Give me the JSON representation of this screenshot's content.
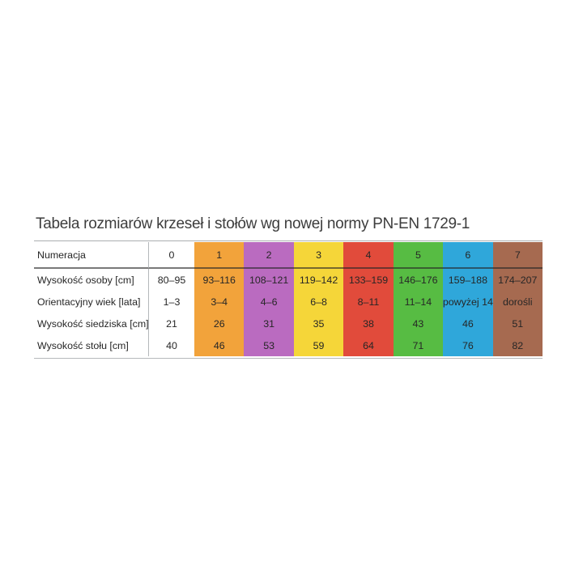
{
  "title": "Tabela rozmiarów krzeseł i stołów wg nowej normy PN-EN 1729-1",
  "chart_data": {
    "type": "table",
    "title": "Tabela rozmiarów krzeseł i stołów wg nowej normy PN-EN 1729-1",
    "header": {
      "label": "Numeracja",
      "sizes": [
        "0",
        "1",
        "2",
        "3",
        "4",
        "5",
        "6",
        "7"
      ]
    },
    "rows": [
      {
        "label": "Wysokość osoby [cm]",
        "values": [
          "80–95",
          "93–116",
          "108–121",
          "119–142",
          "133–159",
          "146–176",
          "159–188",
          "174–207"
        ]
      },
      {
        "label": "Orientacyjny wiek [lata]",
        "values": [
          "1–3",
          "3–4",
          "4–6",
          "6–8",
          "8–11",
          "11–14",
          "powyżej 14",
          "dorośli"
        ]
      },
      {
        "label": "Wysokość siedziska [cm]",
        "values": [
          "21",
          "26",
          "31",
          "35",
          "38",
          "43",
          "46",
          "51"
        ]
      },
      {
        "label": "Wysokość stołu [cm]",
        "values": [
          "40",
          "46",
          "53",
          "59",
          "64",
          "71",
          "76",
          "82"
        ]
      }
    ],
    "column_colors": [
      "#ffffff",
      "#f2a33b",
      "#ba6bc0",
      "#f5d639",
      "#e14b3b",
      "#57bc43",
      "#2fa7da",
      "#a66a50"
    ],
    "layout": {
      "legend": "none",
      "grid": "off",
      "note": "columns 1-7 are full-height colored stripes; header separated by dark rule; thin gray rules at table top and bottom"
    }
  }
}
